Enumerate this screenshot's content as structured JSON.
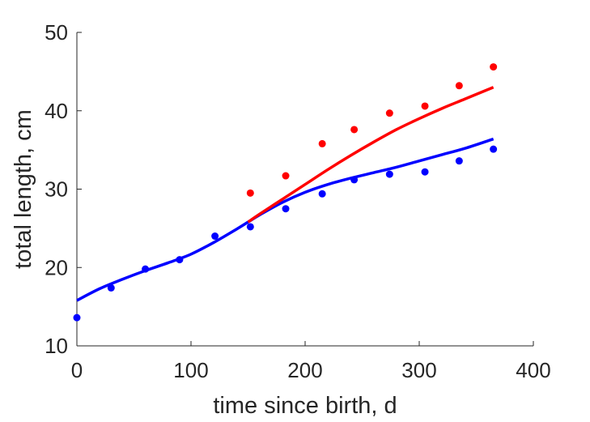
{
  "chart_data": {
    "type": "scatter",
    "title": "",
    "xlabel": "time since birth, d",
    "ylabel": "total length, cm",
    "xlim": [
      0,
      400
    ],
    "ylim": [
      10,
      50
    ],
    "xticks": [
      0,
      100,
      200,
      300,
      400
    ],
    "yticks": [
      10,
      20,
      30,
      40,
      50
    ],
    "grid": false,
    "legend": "none",
    "series": [
      {
        "kind": "points",
        "color": "#0000ff",
        "x": [
          0,
          30,
          60,
          90,
          121,
          152,
          183,
          215,
          243,
          274,
          305,
          335,
          365
        ],
        "y": [
          13.6,
          17.4,
          19.8,
          21.0,
          24.0,
          25.2,
          27.5,
          29.4,
          31.2,
          31.9,
          32.2,
          33.6,
          35.1
        ]
      },
      {
        "kind": "points",
        "color": "#ff0000",
        "x": [
          152,
          183,
          215,
          243,
          274,
          305,
          335,
          365
        ],
        "y": [
          29.5,
          31.7,
          35.8,
          37.6,
          39.7,
          40.6,
          43.2,
          45.6
        ]
      },
      {
        "kind": "line",
        "color": "#0000ff",
        "x": [
          0,
          20,
          40,
          60,
          80,
          100,
          120,
          140,
          150,
          160,
          180,
          200,
          220,
          240,
          260,
          280,
          300,
          320,
          340,
          365
        ],
        "y": [
          15.8,
          17.3,
          18.5,
          19.6,
          20.6,
          21.7,
          23.2,
          24.9,
          25.8,
          26.7,
          28.3,
          29.6,
          30.6,
          31.4,
          32.1,
          32.8,
          33.6,
          34.4,
          35.2,
          36.4
        ]
      },
      {
        "kind": "line",
        "color": "#ff0000",
        "x": [
          150,
          160,
          180,
          200,
          220,
          240,
          260,
          280,
          300,
          320,
          340,
          365
        ],
        "y": [
          25.8,
          26.8,
          28.7,
          30.6,
          32.5,
          34.3,
          36.0,
          37.6,
          39.0,
          40.3,
          41.5,
          43.0
        ]
      }
    ]
  }
}
